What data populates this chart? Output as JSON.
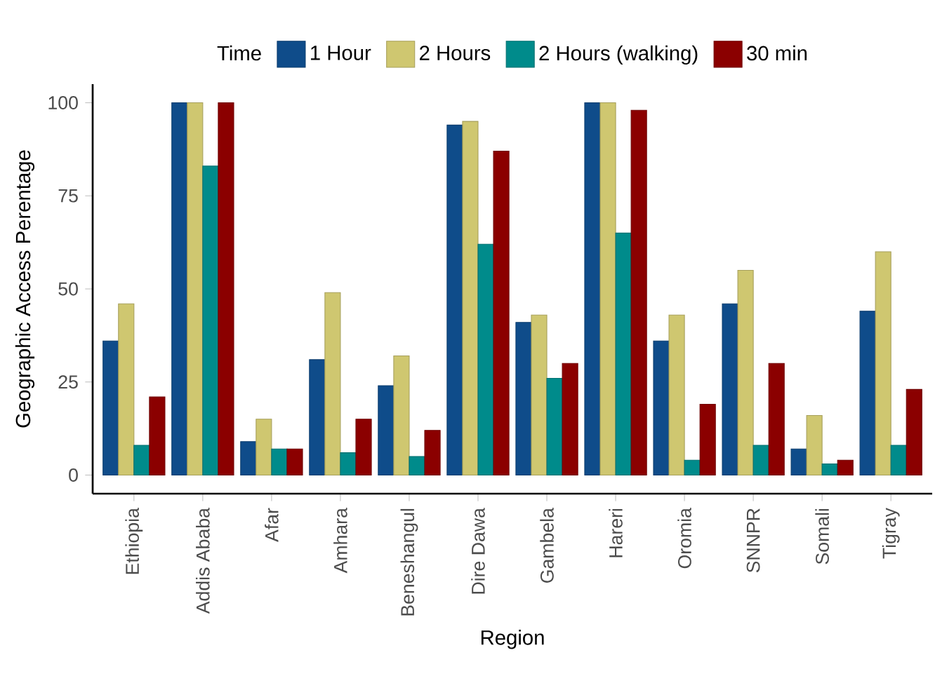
{
  "chart_data": {
    "type": "bar",
    "xlabel": "Region",
    "ylabel": "Geographic Access Perentage",
    "legend_title": "Time",
    "legend": "top",
    "categories": [
      "Ethiopia",
      "Addis Ababa",
      "Afar",
      "Amhara",
      "Beneshangul",
      "Dire Dawa",
      "Gambela",
      "Hareri",
      "Oromia",
      "SNNPR",
      "Somali",
      "Tigray"
    ],
    "series": [
      {
        "name": "1 Hour",
        "color": "#0f4c8a",
        "values": [
          36,
          100,
          9,
          31,
          24,
          94,
          41,
          100,
          36,
          46,
          7,
          44
        ]
      },
      {
        "name": "2 Hours",
        "color": "#cfc770",
        "values": [
          46,
          100,
          15,
          49,
          32,
          95,
          43,
          100,
          43,
          55,
          16,
          60
        ]
      },
      {
        "name": "2 Hours (walking)",
        "color": "#008b8b",
        "values": [
          8,
          83,
          7,
          6,
          5,
          62,
          26,
          65,
          4,
          8,
          3,
          8
        ]
      },
      {
        "name": "30 min",
        "color": "#8b0000",
        "values": [
          21,
          100,
          7,
          15,
          12,
          87,
          30,
          98,
          19,
          30,
          4,
          23
        ]
      }
    ],
    "ylim": [
      -5,
      105
    ],
    "yticks": [
      0,
      25,
      50,
      75,
      100
    ],
    "grid": false
  }
}
